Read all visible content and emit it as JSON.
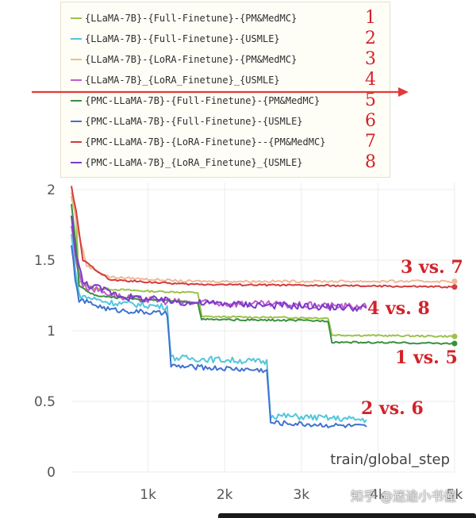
{
  "legend": [
    {
      "label": "{LLaMA-7B}-{Full-Finetune}-{PM&MedMC}",
      "number": "1",
      "color": "#9cc24a"
    },
    {
      "label": "{LLaMA-7B}-{Full-Finetune}-{USMLE}",
      "number": "2",
      "color": "#52c6dc"
    },
    {
      "label": "{LLaMA-7B}-{LoRA-Finetune}-{PM&MedMC}",
      "number": "3",
      "color": "#f0b898"
    },
    {
      "label": "{LLaMA-7B}_{LoRA_Finetune}_{USMLE}",
      "number": "4",
      "color": "#c45ccc"
    },
    {
      "label": "{PMC-LLaMA-7B}-{Full-Finetune}-{PM&MedMC}",
      "number": "5",
      "color": "#3b8f40"
    },
    {
      "label": "{PMC-LLaMA-7B}-{Full-Finetune}-{USMLE}",
      "number": "6",
      "color": "#3f72d0"
    },
    {
      "label": "{PMC-LLaMA-7B}-{LoRA-Finetune}--{PM&MedMC}",
      "number": "7",
      "color": "#d23c3c"
    },
    {
      "label": "{PMC-LLaMA-7B}_{LoRA_Finetune}_{USMLE}",
      "number": "8",
      "color": "#7a3cc8"
    }
  ],
  "comparison_labels": [
    "3 vs. 7",
    "4 vs. 8",
    "1 vs. 5",
    "2 vs. 6"
  ],
  "watermark": "知乎 @迷途小书僮",
  "accent_color": "#d2222a",
  "chart_data": {
    "type": "line",
    "xlabel": "train/global_step",
    "ylabel": "",
    "xlim": [
      0,
      5000
    ],
    "ylim": [
      0,
      2.05
    ],
    "x_ticks": [
      {
        "value": 1000,
        "label": "1k"
      },
      {
        "value": 2000,
        "label": "2k"
      },
      {
        "value": 3000,
        "label": "3k"
      },
      {
        "value": 4000,
        "label": "4k"
      },
      {
        "value": 5000,
        "label": "5k"
      }
    ],
    "y_ticks": [
      {
        "value": 0,
        "label": "0"
      },
      {
        "value": 0.5,
        "label": "0.5"
      },
      {
        "value": 1,
        "label": "1"
      },
      {
        "value": 1.5,
        "label": "1.5"
      },
      {
        "value": 2,
        "label": "2"
      }
    ],
    "grid": true,
    "series": [
      {
        "name": "{LLaMA-7B}-{Full-Finetune}-{PM&MedMC}",
        "color": "#9cc24a",
        "noise": 0.006,
        "end_marker": true,
        "points": [
          [
            0,
            1.95
          ],
          [
            60,
            1.8
          ],
          [
            100,
            1.35
          ],
          [
            300,
            1.3
          ],
          [
            1000,
            1.28
          ],
          [
            1650,
            1.27
          ],
          [
            1700,
            1.1
          ],
          [
            3350,
            1.09
          ],
          [
            3400,
            0.97
          ],
          [
            5000,
            0.96
          ]
        ]
      },
      {
        "name": "{LLaMA-7B}-{Full-Finetune}-{USMLE}",
        "color": "#52c6dc",
        "noise": 0.022,
        "end_marker": false,
        "points": [
          [
            0,
            1.68
          ],
          [
            50,
            1.45
          ],
          [
            100,
            1.25
          ],
          [
            500,
            1.2
          ],
          [
            1250,
            1.17
          ],
          [
            1300,
            0.81
          ],
          [
            2550,
            0.78
          ],
          [
            2600,
            0.4
          ],
          [
            3850,
            0.37
          ]
        ]
      },
      {
        "name": "{LLaMA-7B}-{LoRA-Finetune}-{PM&MedMC}",
        "color": "#f0b898",
        "noise": 0.008,
        "end_marker": true,
        "points": [
          [
            0,
            1.98
          ],
          [
            80,
            1.72
          ],
          [
            200,
            1.46
          ],
          [
            500,
            1.38
          ],
          [
            1500,
            1.35
          ],
          [
            5000,
            1.35
          ]
        ]
      },
      {
        "name": "{LLaMA-7B}_{LoRA_Finetune}_{USMLE}",
        "color": "#c45ccc",
        "noise": 0.025,
        "end_marker": false,
        "points": [
          [
            0,
            1.75
          ],
          [
            60,
            1.5
          ],
          [
            150,
            1.32
          ],
          [
            700,
            1.23
          ],
          [
            1500,
            1.2
          ],
          [
            3850,
            1.17
          ]
        ]
      },
      {
        "name": "{PMC-LLaMA-7B}-{Full-Finetune}-{PM&MedMC}",
        "color": "#3b8f40",
        "noise": 0.006,
        "end_marker": true,
        "points": [
          [
            0,
            1.9
          ],
          [
            60,
            1.6
          ],
          [
            100,
            1.32
          ],
          [
            300,
            1.25
          ],
          [
            1000,
            1.22
          ],
          [
            1650,
            1.2
          ],
          [
            1700,
            1.08
          ],
          [
            3350,
            1.07
          ],
          [
            3400,
            0.92
          ],
          [
            5000,
            0.91
          ]
        ]
      },
      {
        "name": "{PMC-LLaMA-7B}-{Full-Finetune}-{USMLE}",
        "color": "#3f72d0",
        "noise": 0.018,
        "end_marker": false,
        "points": [
          [
            0,
            1.62
          ],
          [
            50,
            1.35
          ],
          [
            100,
            1.22
          ],
          [
            500,
            1.15
          ],
          [
            1250,
            1.12
          ],
          [
            1300,
            0.75
          ],
          [
            2550,
            0.72
          ],
          [
            2600,
            0.35
          ],
          [
            3850,
            0.32
          ]
        ]
      },
      {
        "name": "{PMC-LLaMA-7B}-{LoRA-Finetune}--{PM&MedMC}",
        "color": "#d23c3c",
        "noise": 0.006,
        "end_marker": true,
        "points": [
          [
            0,
            2.02
          ],
          [
            60,
            1.85
          ],
          [
            150,
            1.5
          ],
          [
            500,
            1.36
          ],
          [
            1500,
            1.33
          ],
          [
            5000,
            1.31
          ]
        ]
      },
      {
        "name": "{PMC-LLaMA-7B}_{LoRA_Finetune}_{USMLE}",
        "color": "#7a3cc8",
        "noise": 0.025,
        "end_marker": false,
        "points": [
          [
            0,
            1.8
          ],
          [
            60,
            1.55
          ],
          [
            150,
            1.34
          ],
          [
            700,
            1.24
          ],
          [
            1500,
            1.2
          ],
          [
            3850,
            1.16
          ]
        ]
      }
    ]
  }
}
